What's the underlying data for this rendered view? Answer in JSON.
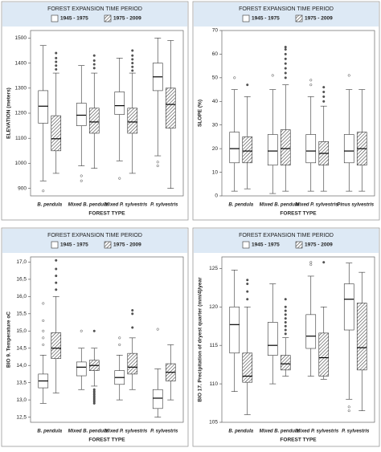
{
  "chart_data": [
    {
      "type": "box",
      "legend_title": "FOREST EXPANSION TIME PERIOD",
      "ylabel": "ELEVATION (meters)",
      "xlabel": "FOREST TYPE",
      "categories": [
        "B. pendula",
        "Mixed B. pendula",
        "Mixed P. sylvestris",
        "P. sylvestris"
      ],
      "ylim": [
        870,
        1530
      ],
      "yticks": [
        900,
        1000,
        1100,
        1200,
        1300,
        1400,
        1500
      ],
      "series": [
        {
          "name": "1945 - 1975",
          "color": "#ffffff",
          "hatch": false,
          "boxes": [
            {
              "whislo": 930,
              "q1": 1160,
              "med": 1228,
              "q3": 1290,
              "whishi": 1470,
              "fliers": [
                890
              ]
            },
            {
              "whislo": 990,
              "q1": 1150,
              "med": 1192,
              "q3": 1240,
              "whishi": 1390,
              "fliers": [
                930,
                950
              ]
            },
            {
              "whislo": 1010,
              "q1": 1195,
              "med": 1230,
              "q3": 1285,
              "whishi": 1420,
              "fliers": [
                940
              ]
            },
            {
              "whislo": 1030,
              "q1": 1290,
              "med": 1345,
              "q3": 1400,
              "whishi": 1500,
              "fliers": [
                990,
                1005
              ]
            }
          ]
        },
        {
          "name": "1975 - 2009",
          "color": "#ffffff",
          "hatch": true,
          "boxes": [
            {
              "whislo": 960,
              "q1": 1050,
              "med": 1098,
              "q3": 1190,
              "whishi": 1360,
              "fliers": [
                1375,
                1390,
                1405,
                1420,
                1440
              ]
            },
            {
              "whislo": 980,
              "q1": 1120,
              "med": 1165,
              "q3": 1220,
              "whishi": 1360,
              "fliers": [
                1380,
                1395,
                1410,
                1430
              ]
            },
            {
              "whislo": 960,
              "q1": 1120,
              "med": 1165,
              "q3": 1220,
              "whishi": 1360,
              "fliers": [
                1370,
                1385,
                1400,
                1415,
                1430,
                1450
              ]
            },
            {
              "whislo": 900,
              "q1": 1140,
              "med": 1235,
              "q3": 1300,
              "whishi": 1490,
              "fliers": []
            }
          ]
        }
      ]
    },
    {
      "type": "box",
      "legend_title": "FOREST EXPANSION TIME PERIOD",
      "ylabel": "SLOPE (%)",
      "xlabel": "FOREST TYPE",
      "categories": [
        "B. pendula",
        "Mixed B. pendula",
        "Mixed P. sylvestris.",
        "Pinus sylvestris"
      ],
      "ylim": [
        0,
        70
      ],
      "yticks": [
        0,
        10,
        20,
        30,
        40,
        50,
        60,
        70
      ],
      "series": [
        {
          "name": "1945 - 1975",
          "color": "#ffffff",
          "hatch": false,
          "boxes": [
            {
              "whislo": 2,
              "q1": 14,
              "med": 20,
              "q3": 27,
              "whishi": 45,
              "fliers": [
                50
              ]
            },
            {
              "whislo": 1,
              "q1": 13,
              "med": 19,
              "q3": 26,
              "whishi": 45,
              "fliers": [
                51
              ]
            },
            {
              "whislo": 2,
              "q1": 14,
              "med": 19,
              "q3": 26,
              "whishi": 42,
              "fliers": [
                47,
                49
              ]
            },
            {
              "whislo": 2,
              "q1": 14,
              "med": 19,
              "q3": 26,
              "whishi": 45,
              "fliers": [
                51
              ]
            }
          ]
        },
        {
          "name": "1975 - 2009",
          "color": "#ffffff",
          "hatch": true,
          "boxes": [
            {
              "whislo": 3,
              "q1": 14,
              "med": 19,
              "q3": 25,
              "whishi": 42,
              "fliers": [
                47
              ]
            },
            {
              "whislo": 2,
              "q1": 13,
              "med": 20,
              "q3": 28,
              "whishi": 47,
              "fliers": [
                50,
                52,
                54,
                56,
                58,
                60,
                62,
                63
              ]
            },
            {
              "whislo": 2,
              "q1": 13,
              "med": 18,
              "q3": 23,
              "whishi": 38,
              "fliers": [
                40,
                42,
                44,
                46
              ]
            },
            {
              "whislo": 2,
              "q1": 13,
              "med": 20,
              "q3": 27,
              "whishi": 45,
              "fliers": []
            }
          ]
        }
      ]
    },
    {
      "type": "box",
      "legend_title": "FOREST EXPANSION TIME PERIOD",
      "ylabel": "BIO 9. Temperature oC",
      "xlabel": "FOREST TYPE",
      "categories": [
        "B. pendula",
        "Mixed B. pendula",
        "Mixed P. sylvestris",
        "P. sylvestris"
      ],
      "ylim": [
        12.35,
        17.15
      ],
      "yticks": [
        {
          "value": 12.5,
          "label": "12,5"
        },
        {
          "value": 13,
          "label": "13,0"
        },
        {
          "value": 13.5,
          "label": "13,5"
        },
        {
          "value": 14,
          "label": "14,0"
        },
        {
          "value": 14.5,
          "label": "14,5"
        },
        {
          "value": 15,
          "label": "15,0"
        },
        {
          "value": 15.5,
          "label": "15,5"
        },
        {
          "value": 16,
          "label": "16,0"
        },
        {
          "value": 16.5,
          "label": "16,5"
        },
        {
          "value": 17,
          "label": "17,0"
        }
      ],
      "series": [
        {
          "name": "1945 - 1975",
          "color": "#ffffff",
          "hatch": false,
          "boxes": [
            {
              "whislo": 12.9,
              "q1": 13.35,
              "med": 13.55,
              "q3": 13.75,
              "whishi": 14.3,
              "fliers": [
                14.6,
                14.8,
                15.0,
                15.3,
                15.8
              ]
            },
            {
              "whislo": 13.3,
              "q1": 13.7,
              "med": 13.95,
              "q3": 14.1,
              "whishi": 14.5,
              "fliers": [
                15.0
              ]
            },
            {
              "whislo": 13.0,
              "q1": 13.45,
              "med": 13.65,
              "q3": 13.85,
              "whishi": 14.3,
              "fliers": [
                14.6,
                14.8
              ]
            },
            {
              "whislo": 12.5,
              "q1": 12.75,
              "med": 13.05,
              "q3": 13.3,
              "whishi": 13.9,
              "fliers": [
                15.05
              ]
            }
          ]
        },
        {
          "name": "1975 - 2009",
          "color": "#ffffff",
          "hatch": true,
          "boxes": [
            {
              "whislo": 13.2,
              "q1": 14.2,
              "med": 14.5,
              "q3": 14.95,
              "whishi": 16.0,
              "fliers": [
                16.2,
                16.4,
                16.6,
                16.8,
                17.05
              ]
            },
            {
              "whislo": 13.4,
              "q1": 13.85,
              "med": 14.0,
              "q3": 14.15,
              "whishi": 14.5,
              "fliers": [
                12.9,
                12.95,
                13.0,
                13.05,
                13.1,
                13.15,
                13.2,
                13.25,
                13.3,
                15.0
              ]
            },
            {
              "whislo": 13.3,
              "q1": 13.75,
              "med": 13.95,
              "q3": 14.35,
              "whishi": 14.8,
              "fliers": [
                15.1,
                15.5,
                15.6
              ]
            },
            {
              "whislo": 13.0,
              "q1": 13.55,
              "med": 13.8,
              "q3": 14.05,
              "whishi": 14.6,
              "fliers": []
            }
          ]
        }
      ]
    },
    {
      "type": "box",
      "legend_title": "FOREST EXPANSION TIME PERIOD",
      "ylabel": "BIO 17. Precipitation of dryest quarter (mm/4)/year",
      "xlabel": "FOREST TYPE",
      "categories": [
        "B. pendula",
        "Mixed B. pendula",
        "Mixed P. sylvestris",
        "P. sylvestris"
      ],
      "ylim": [
        105,
        126.5
      ],
      "yticks": [
        105,
        110,
        115,
        120,
        125
      ],
      "series": [
        {
          "name": "1945 - 1975",
          "color": "#ffffff",
          "hatch": false,
          "boxes": [
            {
              "whislo": 109,
              "q1": 114,
              "med": 117.7,
              "q3": 120,
              "whishi": 124.8,
              "fliers": []
            },
            {
              "whislo": 110,
              "q1": 113.7,
              "med": 115,
              "q3": 118,
              "whishi": 123,
              "fliers": []
            },
            {
              "whislo": 111,
              "q1": 114.6,
              "med": 116.2,
              "q3": 119,
              "whishi": 124,
              "fliers": [
                125.5,
                125.8
              ]
            },
            {
              "whislo": 108,
              "q1": 117,
              "med": 121,
              "q3": 123,
              "whishi": 125.7,
              "fliers": [
                106.5,
                107
              ]
            }
          ]
        },
        {
          "name": "1975 - 2009",
          "color": "#ffffff",
          "hatch": true,
          "boxes": [
            {
              "whislo": 106,
              "q1": 110.2,
              "med": 111,
              "q3": 114,
              "whishi": 120,
              "fliers": [
                121,
                122,
                123,
                123.5
              ]
            },
            {
              "whislo": 111,
              "q1": 111.8,
              "med": 112.6,
              "q3": 113.7,
              "whishi": 116,
              "fliers": [
                116.5,
                117,
                117.5,
                118,
                118.5,
                119,
                119.5,
                120,
                121
              ]
            },
            {
              "whislo": 110.6,
              "q1": 111,
              "med": 113.4,
              "q3": 116.6,
              "whishi": 120,
              "fliers": [
                125.8
              ]
            },
            {
              "whislo": 106.5,
              "q1": 111.8,
              "med": 114.7,
              "q3": 120.5,
              "whishi": 124.5,
              "fliers": []
            }
          ]
        }
      ]
    }
  ]
}
